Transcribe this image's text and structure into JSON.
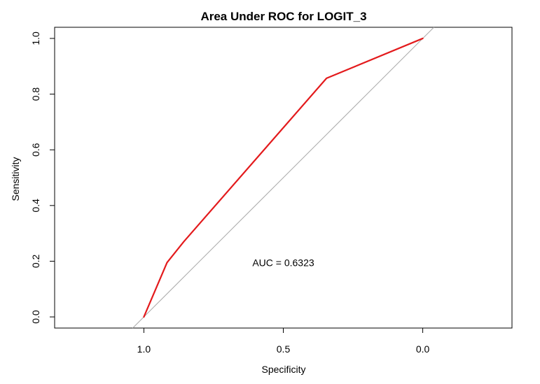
{
  "chart_data": {
    "type": "line",
    "title": "Area Under ROC for LOGIT_3",
    "xlabel": "Specificity",
    "ylabel": "Sensitivity",
    "x_reversed": true,
    "xlim": [
      1.32,
      -0.32
    ],
    "ylim": [
      -0.04,
      1.04
    ],
    "x_ticks": [
      1.0,
      0.5,
      0.0
    ],
    "x_tick_labels": [
      "1.0",
      "0.5",
      "0.0"
    ],
    "y_ticks": [
      0.0,
      0.2,
      0.4,
      0.6,
      0.8,
      1.0
    ],
    "y_tick_labels": [
      "0.0",
      "0.2",
      "0.4",
      "0.6",
      "0.8",
      "1.0"
    ],
    "grid": false,
    "series": [
      {
        "color": "#e31a1c",
        "x": [
          1.0,
          0.917,
          0.857,
          0.345,
          0.0
        ],
        "y": [
          0.0,
          0.195,
          0.27,
          0.857,
          1.0
        ]
      }
    ],
    "reference_line": {
      "color": "#aaaaaa",
      "x": [
        1.04,
        -0.04
      ],
      "y": [
        -0.04,
        1.04
      ]
    },
    "annotation": {
      "text": "AUC = 0.6323",
      "x": 0.5,
      "y": 0.195
    }
  }
}
